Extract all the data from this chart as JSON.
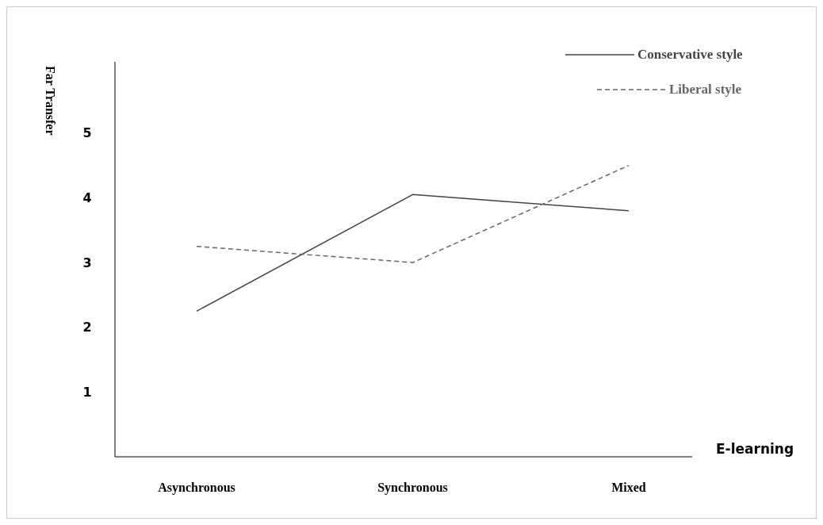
{
  "chart_data": {
    "type": "line",
    "xlabel": "E-learning",
    "ylabel": "Far Transfer",
    "categories": [
      "Asynchronous",
      "Synchronous",
      "Mixed"
    ],
    "series": [
      {
        "name": "Conservative style",
        "color": "#444444",
        "line_style": "solid",
        "values": [
          2.25,
          4.05,
          3.8
        ]
      },
      {
        "name": "Liberal style",
        "color": "#666666",
        "line_style": "dashed",
        "values": [
          3.25,
          3.0,
          4.5
        ]
      }
    ],
    "ylim": [
      0,
      6.1
    ],
    "yticks": [
      1,
      2,
      3,
      4,
      5
    ],
    "grid": false,
    "legend": "top right"
  }
}
